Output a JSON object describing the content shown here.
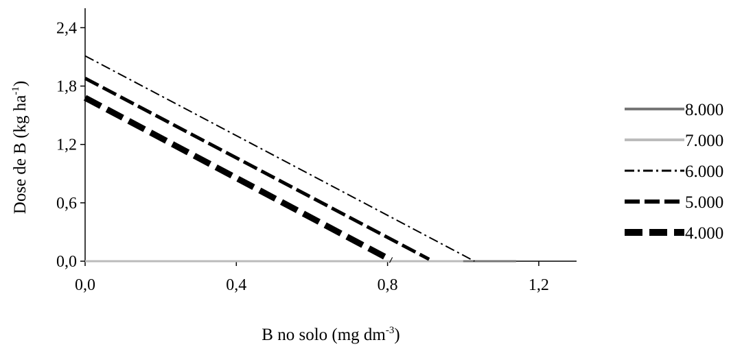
{
  "chart_data": {
    "type": "line",
    "title": "",
    "xlabel": {
      "text": "B no solo (mg dm",
      "sup": "-3",
      "close": ")"
    },
    "ylabel": {
      "text": "Dose de B (kg ha",
      "sup": "-1",
      "close": ")"
    },
    "xlim": [
      0,
      1.3
    ],
    "ylim": [
      0,
      2.6
    ],
    "xticks": [
      0,
      0.4,
      0.8,
      1.2
    ],
    "xtick_labels": [
      "0,0",
      "0,4",
      "0,8",
      "1,2"
    ],
    "yticks": [
      0,
      0.6,
      1.2,
      1.8,
      2.4
    ],
    "ytick_labels": [
      "0,0",
      "0,6",
      "1,2",
      "1,8",
      "2,4"
    ],
    "grid": false,
    "legend_position": "right",
    "series": [
      {
        "name": "8.000",
        "color": "#777777",
        "style": "solid",
        "x": [
          0,
          1.14
        ],
        "y": [
          0,
          0
        ]
      },
      {
        "name": "7.000",
        "color": "#bbbbbb",
        "style": "solid",
        "x": [
          0,
          1.0
        ],
        "y": [
          0,
          0
        ]
      },
      {
        "name": "6.000",
        "color": "#000000",
        "style": "dashdot",
        "x": [
          0,
          1.03
        ],
        "y": [
          2.11,
          0
        ]
      },
      {
        "name": "5.000",
        "color": "#000000",
        "style": "dash",
        "x": [
          0,
          0.91
        ],
        "y": [
          1.88,
          0.02
        ]
      },
      {
        "name": "4.000",
        "color": "#000000",
        "style": "bigdash",
        "x": [
          0,
          0.81
        ],
        "y": [
          1.68,
          0.01
        ]
      }
    ]
  }
}
